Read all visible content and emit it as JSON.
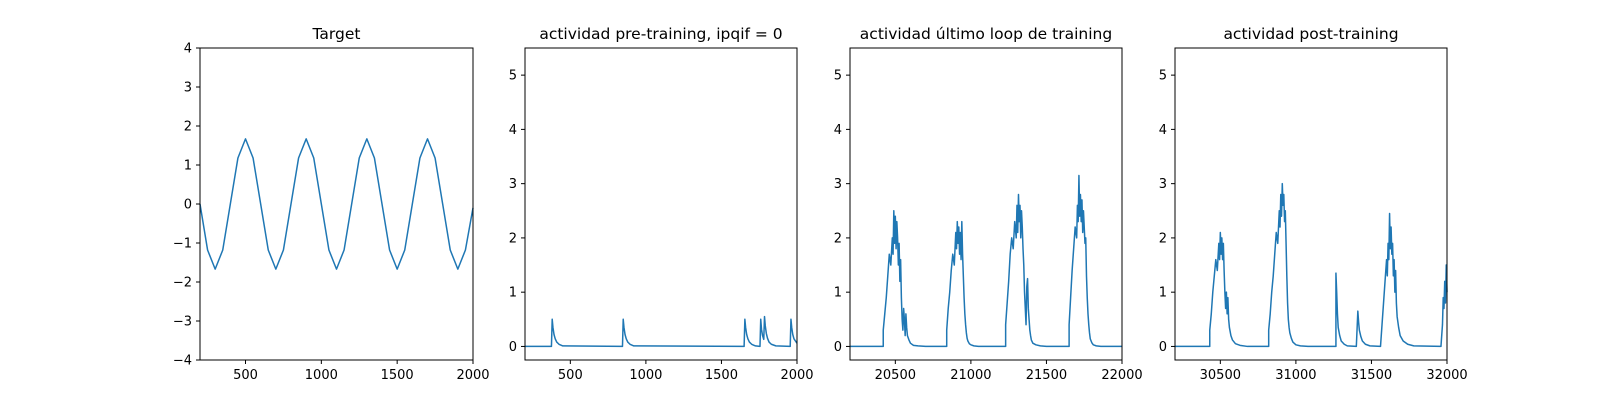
{
  "chart_data": [
    {
      "type": "line",
      "title": "Target",
      "xlabel": "",
      "ylabel": "",
      "xlim": [
        200,
        2000
      ],
      "ylim": [
        -4,
        4
      ],
      "xticks": [
        500,
        1000,
        1500,
        2000
      ],
      "yticks": [
        -4,
        -3,
        -2,
        -1,
        0,
        1,
        2,
        3,
        4
      ],
      "grid": false,
      "series": [
        {
          "color": "#1f77b4",
          "x": [
            200,
            250,
            300,
            350,
            400,
            450,
            500,
            550,
            600,
            650,
            700,
            750,
            800,
            850,
            900,
            950,
            1000,
            1050,
            1100,
            1150,
            1200,
            1250,
            1300,
            1350,
            1400,
            1450,
            1500,
            1550,
            1600,
            1650,
            1700,
            1750,
            1800,
            1850,
            1900,
            1950,
            2000
          ],
          "y": [
            0,
            -1.18,
            -1.67,
            -1.18,
            0,
            1.18,
            1.67,
            1.18,
            0,
            -1.18,
            -1.67,
            -1.18,
            0,
            1.18,
            1.67,
            1.18,
            0,
            -1.18,
            -1.67,
            -1.18,
            0,
            1.18,
            1.67,
            1.18,
            0,
            -1.18,
            -1.67,
            -1.18,
            0,
            1.18,
            1.67,
            1.18,
            0,
            -1.18,
            -1.67,
            -1.18,
            -0.1
          ]
        }
      ]
    },
    {
      "type": "line",
      "title": "actividad pre-training, ipqif = 0",
      "xlabel": "",
      "ylabel": "",
      "xlim": [
        200,
        2000
      ],
      "ylim": [
        -0.25,
        5.5
      ],
      "xticks": [
        500,
        1000,
        1500,
        2000
      ],
      "yticks": [
        0,
        1,
        2,
        3,
        4,
        5
      ],
      "grid": false,
      "series": [
        {
          "color": "#1f77b4",
          "x": [
            200,
            375,
            380,
            385,
            392,
            400,
            410,
            425,
            450,
            845,
            850,
            855,
            862,
            870,
            880,
            895,
            920,
            1650,
            1655,
            1660,
            1667,
            1675,
            1685,
            1700,
            1725,
            1755,
            1760,
            1765,
            1772,
            1780,
            1785,
            1790,
            1797,
            1805,
            1815,
            1830,
            1860,
            1955,
            1960,
            1965,
            1972,
            1980,
            1990,
            2000
          ],
          "y": [
            0,
            0,
            0.5,
            0.35,
            0.22,
            0.14,
            0.08,
            0.04,
            0.01,
            0,
            0.5,
            0.35,
            0.22,
            0.14,
            0.08,
            0.04,
            0.01,
            0,
            0.5,
            0.35,
            0.22,
            0.14,
            0.08,
            0.04,
            0.01,
            0,
            0.5,
            0.32,
            0.2,
            0.13,
            0.55,
            0.38,
            0.24,
            0.15,
            0.08,
            0.04,
            0.01,
            0,
            0.5,
            0.35,
            0.22,
            0.14,
            0.1,
            0.06
          ]
        }
      ]
    },
    {
      "type": "line",
      "title": "actividad último loop de training",
      "xlabel": "",
      "ylabel": "",
      "xlim": [
        20200,
        22000
      ],
      "ylim": [
        -0.25,
        5.5
      ],
      "xticks": [
        20500,
        21000,
        21500,
        22000
      ],
      "yticks": [
        0,
        1,
        2,
        3,
        4,
        5
      ],
      "grid": false,
      "series": [
        {
          "color": "#1f77b4",
          "x": [
            20200,
            20420,
            20420,
            20430,
            20440,
            20450,
            20460,
            20470,
            20480,
            20485,
            20490,
            20495,
            20500,
            20505,
            20510,
            20515,
            20520,
            20525,
            20530,
            20535,
            20540,
            20545,
            20550,
            20555,
            20560,
            20565,
            20570,
            20575,
            20580,
            20590,
            20600,
            20620,
            20650,
            20700,
            20840,
            20840,
            20850,
            20860,
            20870,
            20880,
            20890,
            20900,
            20905,
            20910,
            20915,
            20920,
            20925,
            20930,
            20935,
            20940,
            20945,
            20950,
            20955,
            20960,
            20965,
            20970,
            20975,
            20980,
            20990,
            21000,
            21020,
            21050,
            21100,
            21230,
            21230,
            21240,
            21250,
            21260,
            21270,
            21280,
            21290,
            21300,
            21305,
            21310,
            21315,
            21320,
            21325,
            21330,
            21335,
            21340,
            21345,
            21350,
            21355,
            21360,
            21365,
            21370,
            21375,
            21380,
            21385,
            21390,
            21395,
            21400,
            21410,
            21430,
            21460,
            21500,
            21650,
            21650,
            21660,
            21670,
            21680,
            21690,
            21700,
            21705,
            21710,
            21715,
            21720,
            21725,
            21730,
            21735,
            21740,
            21745,
            21750,
            21755,
            21760,
            21765,
            21770,
            21775,
            21780,
            21785,
            21790,
            21800,
            21810,
            21830,
            21860,
            21900,
            22000
          ],
          "y": [
            0,
            0,
            0.3,
            0.6,
            0.9,
            1.3,
            1.7,
            1.5,
            2.0,
            1.7,
            2.5,
            1.9,
            2.4,
            1.8,
            2.3,
            2.0,
            1.5,
            1.9,
            1.2,
            1.6,
            0.9,
            0.5,
            0.3,
            0.7,
            0.5,
            0.2,
            0.6,
            0.35,
            0.2,
            0.12,
            0.06,
            0.02,
            0.01,
            0,
            0,
            0.3,
            0.7,
            1.0,
            1.4,
            1.7,
            1.5,
            2.1,
            1.8,
            2.3,
            1.9,
            2.2,
            1.7,
            2.1,
            1.6,
            2.3,
            1.7,
            1.3,
            0.9,
            0.6,
            0.4,
            0.25,
            0.15,
            0.1,
            0.05,
            0.03,
            0.01,
            0,
            0,
            0,
            0.4,
            0.8,
            1.2,
            1.7,
            2.0,
            1.8,
            2.3,
            2.0,
            2.6,
            2.1,
            2.8,
            2.3,
            2.6,
            2.0,
            2.5,
            2.2,
            1.8,
            1.5,
            1.0,
            0.7,
            0.4,
            1.1,
            1.25,
            0.7,
            0.5,
            0.3,
            0.2,
            0.12,
            0.06,
            0.03,
            0.01,
            0,
            0,
            0.4,
            0.9,
            1.4,
            1.8,
            2.2,
            2.0,
            2.6,
            2.3,
            3.15,
            2.4,
            2.8,
            2.3,
            2.7,
            2.1,
            2.5,
            2.2,
            1.9,
            2.0,
            1.3,
            0.9,
            0.6,
            0.4,
            0.25,
            0.14,
            0.07,
            0.03,
            0.01,
            0,
            0,
            0
          ]
        }
      ]
    },
    {
      "type": "line",
      "title": "actividad post-training",
      "xlabel": "",
      "ylabel": "",
      "xlim": [
        30200,
        32000
      ],
      "ylim": [
        -0.25,
        5.5
      ],
      "xticks": [
        30500,
        31000,
        31500,
        32000
      ],
      "yticks": [
        0,
        1,
        2,
        3,
        4,
        5
      ],
      "grid": false,
      "series": [
        {
          "color": "#1f77b4",
          "x": [
            30200,
            30430,
            30430,
            30440,
            30450,
            30460,
            30470,
            30480,
            30490,
            30495,
            30500,
            30505,
            30510,
            30515,
            30520,
            30525,
            30530,
            30535,
            30540,
            30545,
            30550,
            30555,
            30560,
            30570,
            30580,
            30600,
            30630,
            30680,
            30820,
            30820,
            30830,
            30840,
            30850,
            30860,
            30870,
            30880,
            30890,
            30895,
            30900,
            30905,
            30910,
            30915,
            30920,
            30925,
            30930,
            30935,
            30940,
            30945,
            30950,
            30955,
            30960,
            30970,
            30980,
            31000,
            31030,
            31080,
            31265,
            31265,
            31270,
            31275,
            31280,
            31290,
            31300,
            31320,
            31340,
            31400,
            31410,
            31415,
            31420,
            31430,
            31440,
            31460,
            31490,
            31560,
            31560,
            31570,
            31580,
            31590,
            31600,
            31605,
            31610,
            31615,
            31620,
            31625,
            31630,
            31635,
            31640,
            31645,
            31650,
            31655,
            31660,
            31665,
            31670,
            31680,
            31690,
            31710,
            31740,
            31780,
            31960,
            31960,
            31970,
            31975,
            31980,
            31985,
            31990,
            31995,
            32000
          ],
          "y": [
            0,
            0,
            0.3,
            0.6,
            1.0,
            1.3,
            1.6,
            1.4,
            1.9,
            1.6,
            2.1,
            1.7,
            2.0,
            1.6,
            1.9,
            1.4,
            1.0,
            0.7,
            1.0,
            0.6,
            0.9,
            0.5,
            0.35,
            0.2,
            0.12,
            0.05,
            0.02,
            0,
            0,
            0.3,
            0.6,
            1.0,
            1.3,
            1.7,
            2.1,
            1.9,
            2.5,
            2.2,
            2.8,
            2.4,
            3.0,
            2.6,
            2.8,
            2.3,
            2.5,
            1.9,
            1.3,
            0.8,
            0.5,
            0.35,
            0.25,
            0.15,
            0.08,
            0.03,
            0.01,
            0,
            0,
            1.35,
            1.0,
            0.6,
            0.35,
            0.2,
            0.1,
            0.04,
            0.01,
            0,
            0.65,
            0.45,
            0.3,
            0.18,
            0.1,
            0.04,
            0.01,
            0,
            0,
            0.4,
            0.8,
            1.2,
            1.6,
            1.3,
            1.9,
            1.6,
            2.45,
            1.8,
            2.2,
            1.7,
            1.9,
            1.3,
            1.6,
            1.0,
            1.4,
            0.8,
            0.55,
            0.35,
            0.2,
            0.1,
            0.04,
            0.01,
            0,
            0,
            0.4,
            0.9,
            0.7,
            1.2,
            0.8,
            1.5,
            1.0
          ]
        }
      ]
    }
  ]
}
